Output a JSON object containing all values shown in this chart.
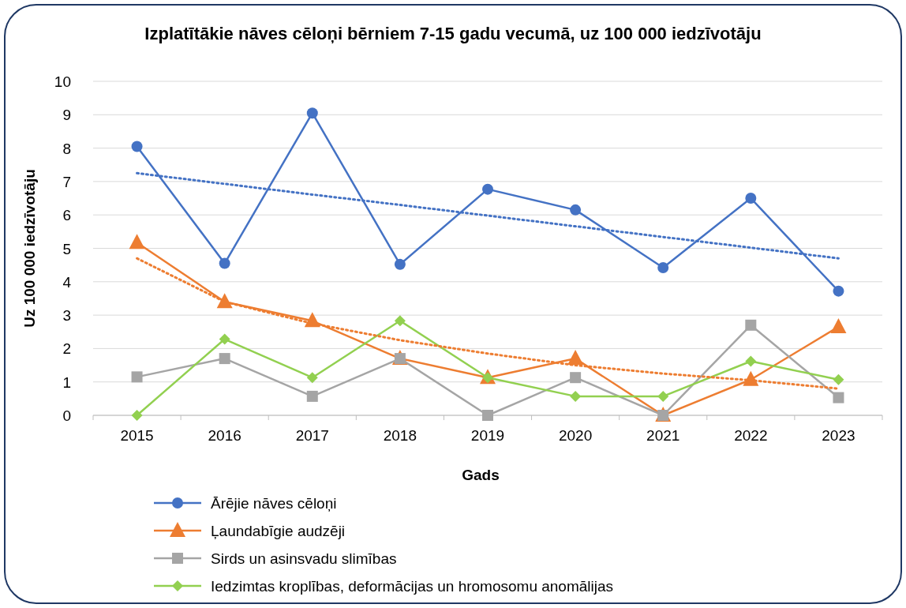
{
  "chart_data": {
    "type": "line",
    "title": "Izplatītākie nāves cēloņi bērniem 7-15 gadu vecumā, uz 100 000 iedzīvotāju",
    "xlabel": "Gads",
    "ylabel": "Uz 100 000 iedzīvotāju",
    "categories": [
      "2015",
      "2016",
      "2017",
      "2018",
      "2019",
      "2020",
      "2021",
      "2022",
      "2023"
    ],
    "ylim": [
      0,
      10
    ],
    "yticks": [
      0,
      1,
      2,
      3,
      4,
      5,
      6,
      7,
      8,
      9,
      10
    ],
    "grid": "y",
    "legend": "bottom",
    "series": [
      {
        "name": "Ārējie nāves cēloņi",
        "color": "#4472c4",
        "marker": "circle",
        "line_style": "solid",
        "values": [
          8.05,
          4.55,
          9.05,
          4.52,
          6.77,
          6.15,
          4.42,
          6.5,
          3.72
        ]
      },
      {
        "name": "Ļaundabīgie audzēji",
        "color": "#ed7d31",
        "marker": "triangle",
        "line_style": "solid",
        "values": [
          5.17,
          3.4,
          2.83,
          1.7,
          1.13,
          1.7,
          0,
          1.07,
          2.65
        ]
      },
      {
        "name": "Sirds un asinsvadu slimības",
        "color": "#a5a5a5",
        "marker": "square",
        "line_style": "solid",
        "values": [
          1.15,
          1.7,
          0.57,
          1.7,
          0,
          1.13,
          0,
          2.7,
          0.53
        ]
      },
      {
        "name": "Iedzimtas kroplības, deformācijas un hromosomu anomālijas",
        "color": "#92d050",
        "marker": "diamond",
        "line_style": "solid",
        "values": [
          0,
          2.28,
          1.13,
          2.83,
          1.13,
          0.57,
          0.57,
          1.62,
          1.07
        ]
      },
      {
        "color": "#4472c4",
        "marker": "none",
        "line_style": "dotted",
        "values": [
          7.25,
          6.93,
          6.61,
          6.3,
          5.98,
          5.66,
          5.34,
          5.02,
          4.7
        ]
      },
      {
        "color": "#ed7d31",
        "marker": "none",
        "line_style": "dotted",
        "values": [
          4.7,
          3.4,
          2.75,
          2.25,
          1.85,
          1.5,
          1.25,
          1.05,
          0.8
        ]
      }
    ]
  }
}
